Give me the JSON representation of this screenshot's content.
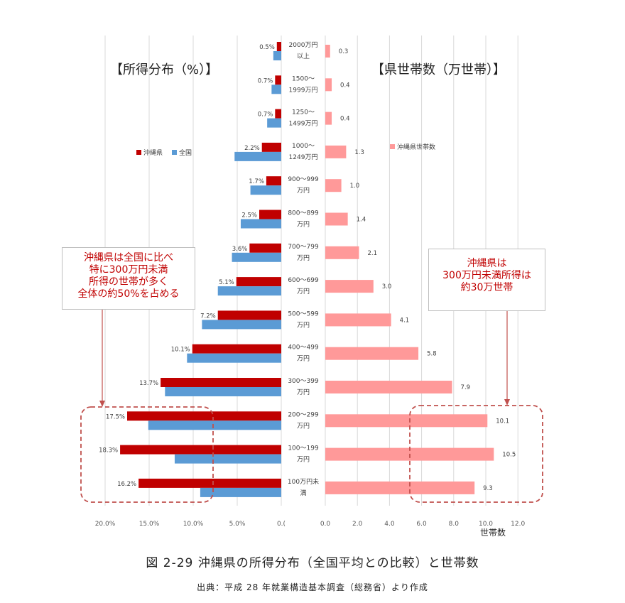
{
  "titles": {
    "left": "【所得分布（%）】",
    "right": "【県世帯数（万世帯）】"
  },
  "legend": {
    "okinawa": "沖縄県",
    "national": "全国",
    "households": "沖縄県世帯数"
  },
  "colors": {
    "okinawa": "#c00000",
    "national": "#5b9bd5",
    "households": "#ff9999",
    "callout_text": "#c00000",
    "dashed": "#c0504d"
  },
  "callouts": {
    "left": [
      "沖縄県は全国に比べ",
      "特に300万円未満",
      "所得の世帯が多く",
      "全体の約50%を占める"
    ],
    "right": [
      "沖縄県は",
      "300万円未満所得は",
      "約30万世帯"
    ]
  },
  "unit_label": "世帯数",
  "caption": "図 2-29  沖縄県の所得分布（全国平均との比較）と世帯数",
  "source": "出典：平成 28 年就業構造基本調査（総務省）より作成",
  "chart_data": [
    {
      "type": "bar",
      "orientation": "horizontal",
      "direction": "reversed",
      "title": "【所得分布（%）】",
      "categories": [
        [
          "2000万円",
          "以上"
        ],
        [
          "1500～",
          "1999万円"
        ],
        [
          "1250～",
          "1499万円"
        ],
        [
          "1000～",
          "1249万円"
        ],
        [
          "900～999",
          "万円"
        ],
        [
          "800～899",
          "万円"
        ],
        [
          "700～799",
          "万円"
        ],
        [
          "600～699",
          "万円"
        ],
        [
          "500～599",
          "万円"
        ],
        [
          "400～499",
          "万円"
        ],
        [
          "300～399",
          "万円"
        ],
        [
          "200～299",
          "万円"
        ],
        [
          "100～199",
          "万円"
        ],
        [
          "100万円未",
          "満"
        ]
      ],
      "series": [
        {
          "name": "沖縄県",
          "values": [
            0.5,
            0.7,
            0.7,
            2.2,
            1.7,
            2.5,
            3.6,
            5.1,
            7.2,
            10.1,
            13.7,
            17.5,
            18.3,
            16.2
          ],
          "labels": [
            "0.5%",
            "0.7%",
            "0.7%",
            "2.2%",
            "1.7%",
            "2.5%",
            "3.6%",
            "5.1%",
            "7.2%",
            "10.1%",
            "13.7%",
            "17.5%",
            "18.3%",
            "16.2%"
          ]
        },
        {
          "name": "全国",
          "values": [
            0.9,
            1.1,
            1.6,
            5.3,
            3.5,
            4.6,
            5.6,
            7.2,
            9.0,
            10.7,
            13.2,
            15.1,
            12.1,
            9.2
          ]
        }
      ],
      "xlim": [
        0,
        20
      ],
      "xticks": [
        "20.0%",
        "15.0%",
        "10.0%",
        "5.0%",
        "0.("
      ],
      "legend_position": "left"
    },
    {
      "type": "bar",
      "orientation": "horizontal",
      "title": "【県世帯数（万世帯）】",
      "series": [
        {
          "name": "沖縄県世帯数",
          "values": [
            0.3,
            0.4,
            0.4,
            1.3,
            1.0,
            1.4,
            2.1,
            3.0,
            4.1,
            5.8,
            7.9,
            10.1,
            10.5,
            9.3
          ],
          "labels": [
            "0.3",
            "0.4",
            "0.4",
            "1.3",
            "1.0",
            "1.4",
            "2.1",
            "3.0",
            "4.1",
            "5.8",
            "7.9",
            "10.1",
            "10.5",
            "9.3"
          ]
        }
      ],
      "xlim": [
        0,
        12
      ],
      "xticks": [
        "0.0",
        "2.0",
        "4.0",
        "6.0",
        "8.0",
        "10.0",
        "12.0"
      ],
      "xlabel": "世帯数",
      "legend_position": "top-right"
    }
  ]
}
